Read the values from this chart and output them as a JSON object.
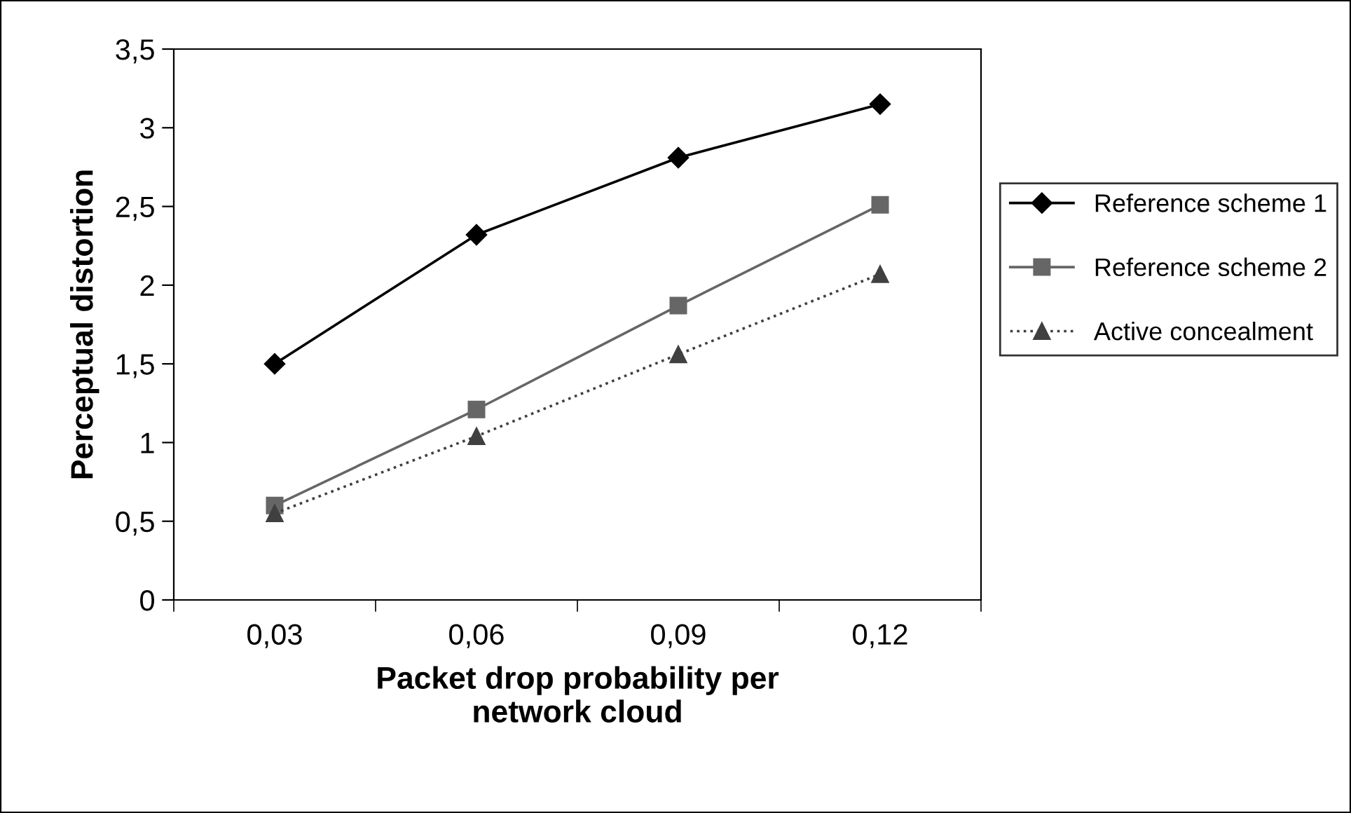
{
  "chart_data": {
    "type": "line",
    "xlabel": "Packet drop probability per\nnetwork cloud",
    "ylabel": "Perceptual distortion",
    "categories": [
      "0,03",
      "0,06",
      "0,09",
      "0,12"
    ],
    "series": [
      {
        "name": "Reference scheme 1",
        "color": "#000000",
        "marker": "diamond",
        "line_style": "solid",
        "values": [
          1.5,
          2.32,
          2.81,
          3.15
        ]
      },
      {
        "name": "Reference scheme 2",
        "color": "#666666",
        "marker": "square",
        "line_style": "solid",
        "values": [
          0.6,
          1.21,
          1.87,
          2.51
        ]
      },
      {
        "name": "Active concealment",
        "color": "#404040",
        "marker": "triangle",
        "line_style": "dotted",
        "values": [
          0.55,
          1.04,
          1.56,
          2.07
        ]
      }
    ],
    "ylim": [
      0,
      3.5
    ],
    "yticks": [
      0,
      {
        "value": 0.5,
        "label": "0,5"
      },
      1,
      {
        "value": 1.5,
        "label": "1,5"
      },
      2,
      {
        "value": 2.5,
        "label": "2,5"
      },
      3,
      {
        "value": 3.5,
        "label": "3,5"
      }
    ],
    "grid": false,
    "legend": "right"
  }
}
